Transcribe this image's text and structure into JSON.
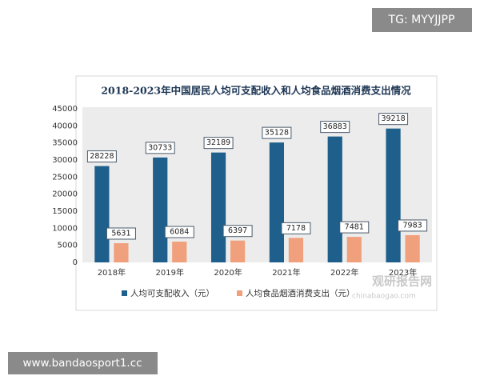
{
  "chart_data": {
    "type": "bar",
    "title": "2018-2023年中国居民人均可支配收入和人均食品烟酒消费支出情况",
    "categories": [
      "2018年",
      "2019年",
      "2020年",
      "2021年",
      "2022年",
      "2023年"
    ],
    "series": [
      {
        "name": "人均可支配收入（元）",
        "color": "#1f5f8b",
        "values": [
          28228,
          30733,
          32189,
          35128,
          36883,
          39218
        ]
      },
      {
        "name": "人均食品烟酒消费支出（元）",
        "color": "#f0a07c",
        "values": [
          5631,
          6084,
          6397,
          7178,
          7481,
          7983
        ]
      }
    ],
    "ylim": [
      0,
      45000
    ],
    "yticks": [
      0,
      5000,
      10000,
      15000,
      20000,
      25000,
      30000,
      35000,
      40000,
      45000
    ],
    "grid": false,
    "legend": "bottom"
  },
  "watermark": {
    "name": "观研报告网",
    "site": "chinabaogao.com"
  },
  "overlays": {
    "top_right": "TG: MYYJJPP",
    "bottom_left": "www.bandaosport1.cc"
  }
}
